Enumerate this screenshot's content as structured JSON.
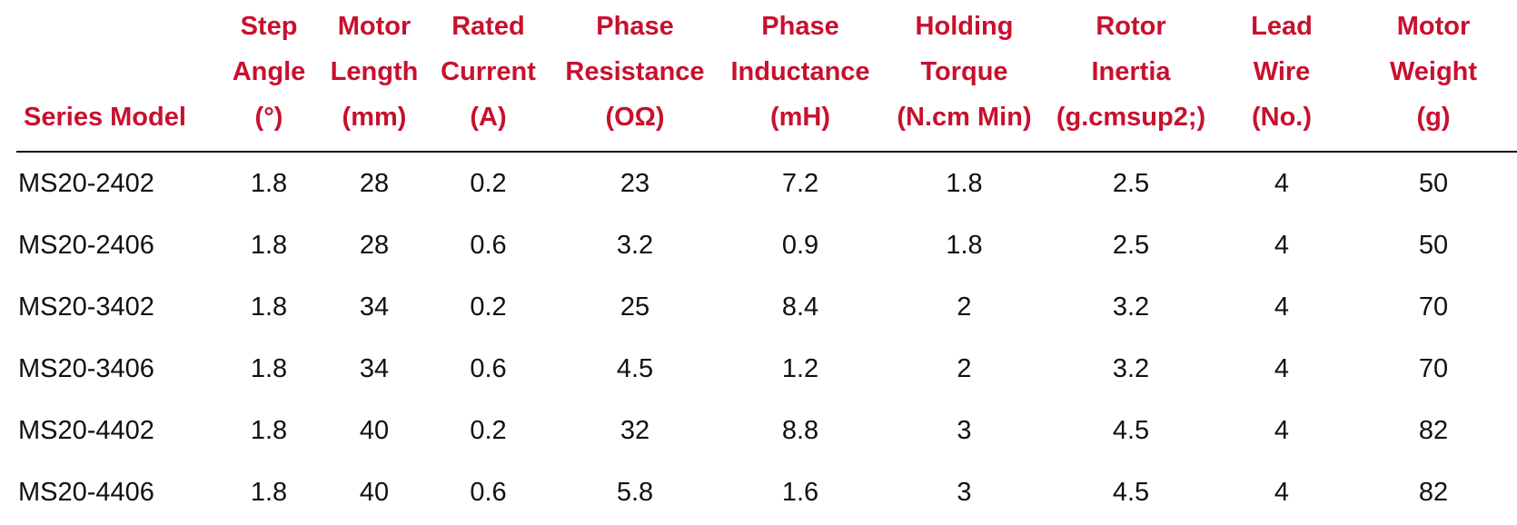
{
  "colors": {
    "header_text": "#c8102e",
    "body_text": "#111111",
    "rule": "#111111"
  },
  "table": {
    "columns": [
      {
        "lines": [
          "Series Model"
        ]
      },
      {
        "lines": [
          "Step",
          "Angle",
          "(°)"
        ]
      },
      {
        "lines": [
          "Motor",
          "Length",
          "(mm)"
        ]
      },
      {
        "lines": [
          "Rated",
          "Current",
          "(A)"
        ]
      },
      {
        "lines": [
          "Phase",
          "Resistance",
          "(OΩ)"
        ]
      },
      {
        "lines": [
          "Phase",
          "Inductance",
          "(mH)"
        ]
      },
      {
        "lines": [
          "Holding",
          "Torque",
          "(N.cm Min)"
        ]
      },
      {
        "lines": [
          "Rotor",
          "Inertia",
          "(g.cmsup2;)"
        ]
      },
      {
        "lines": [
          "Lead",
          "Wire",
          "(No.)"
        ]
      },
      {
        "lines": [
          "Motor",
          "Weight",
          "(g)"
        ]
      }
    ],
    "rows": [
      [
        "MS20-2402",
        "1.8",
        "28",
        "0.2",
        "23",
        "7.2",
        "1.8",
        "2.5",
        "4",
        "50"
      ],
      [
        "MS20-2406",
        "1.8",
        "28",
        "0.6",
        "3.2",
        "0.9",
        "1.8",
        "2.5",
        "4",
        "50"
      ],
      [
        "MS20-3402",
        "1.8",
        "34",
        "0.2",
        "25",
        "8.4",
        "2",
        "3.2",
        "4",
        "70"
      ],
      [
        "MS20-3406",
        "1.8",
        "34",
        "0.6",
        "4.5",
        "1.2",
        "2",
        "3.2",
        "4",
        "70"
      ],
      [
        "MS20-4402",
        "1.8",
        "40",
        "0.2",
        "32",
        "8.8",
        "3",
        "4.5",
        "4",
        "82"
      ],
      [
        "MS20-4406",
        "1.8",
        "40",
        "0.6",
        "5.8",
        "1.6",
        "3",
        "4.5",
        "4",
        "82"
      ]
    ]
  }
}
